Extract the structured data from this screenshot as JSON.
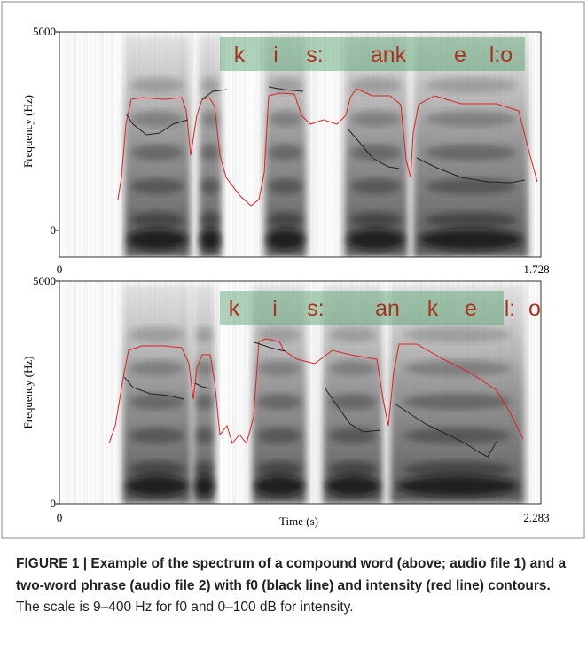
{
  "figure": {
    "panels": [
      {
        "ylabel": "Frequency (Hz)",
        "yticks": [
          5000,
          0
        ],
        "xticks": [
          0,
          1.728
        ],
        "segments": [
          "k",
          "i",
          "s:",
          "ank",
          "e",
          "l:o"
        ]
      },
      {
        "ylabel": "Frequency (Hz)",
        "yticks": [
          5000,
          0
        ],
        "xticks": [
          0,
          2.283
        ],
        "xlabel": "Time (s)",
        "segments": [
          "k",
          "i",
          "s:",
          "an",
          "k",
          "e",
          "l:",
          "o"
        ]
      }
    ],
    "caption": {
      "bold": "FIGURE 1 | Example of the spectrum of a compound word (above; audio file 1) and a two-word phrase (audio file 2) with f0 (black line) and intensity (red line) contours.",
      "text": "The scale is 9–400 Hz for f0 and 0–100 dB for intensity."
    }
  }
}
